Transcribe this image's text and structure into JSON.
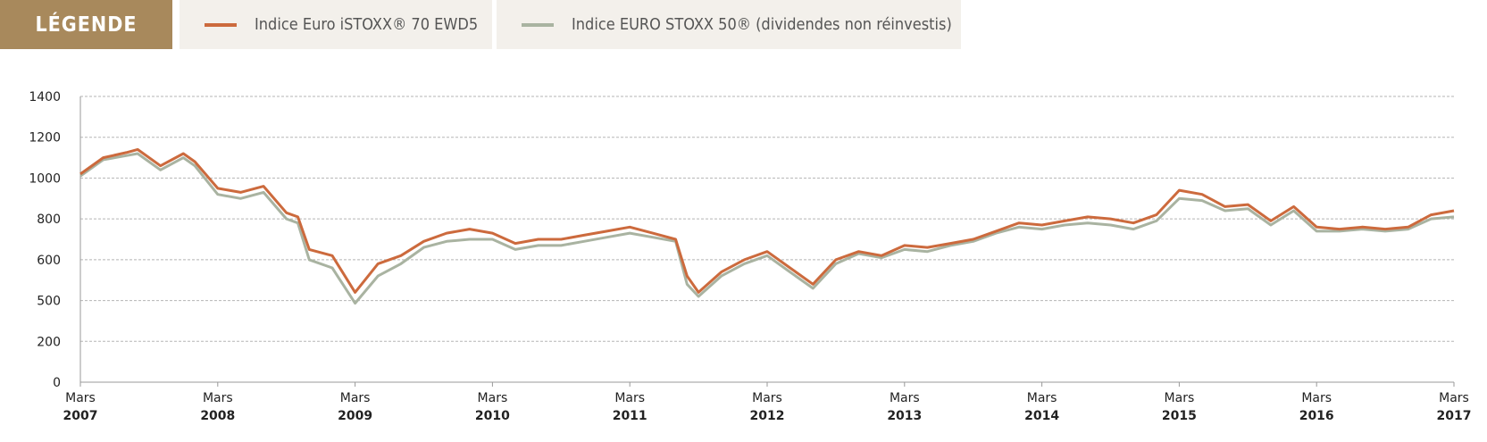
{
  "legend": {
    "title": "LÉGENDE",
    "items": [
      {
        "label": "Indice Euro iSTOXX® 70 EWD5",
        "color": "#cc6a3d"
      },
      {
        "label": "Indice EURO STOXX 50® (dividendes non réinvestis)",
        "color": "#a9b3a1"
      }
    ]
  },
  "chart_data": {
    "type": "line",
    "title": "",
    "xlabel": "",
    "ylabel": "",
    "grid": true,
    "legend_position": "top-left",
    "y_ticks": [
      "0",
      "200",
      "500",
      "600",
      "800",
      "1000",
      "1200",
      "1400"
    ],
    "x_ticks": [
      {
        "month": "Mars",
        "year": "2007"
      },
      {
        "month": "Mars",
        "year": "2008"
      },
      {
        "month": "Mars",
        "year": "2009"
      },
      {
        "month": "Mars",
        "year": "2010"
      },
      {
        "month": "Mars",
        "year": "2011"
      },
      {
        "month": "Mars",
        "year": "2012"
      },
      {
        "month": "Mars",
        "year": "2013"
      },
      {
        "month": "Mars",
        "year": "2014"
      },
      {
        "month": "Mars",
        "year": "2015"
      },
      {
        "month": "Mars",
        "year": "2016"
      },
      {
        "month": "Mars",
        "year": "2017"
      }
    ],
    "x": [
      "2007-03",
      "2007-05",
      "2007-07",
      "2007-08",
      "2007-10",
      "2007-12",
      "2008-01",
      "2008-03",
      "2008-05",
      "2008-07",
      "2008-09",
      "2008-10",
      "2008-11",
      "2009-01",
      "2009-03",
      "2009-05",
      "2009-07",
      "2009-09",
      "2009-11",
      "2010-01",
      "2010-03",
      "2010-05",
      "2010-07",
      "2010-09",
      "2010-11",
      "2011-01",
      "2011-03",
      "2011-05",
      "2011-07",
      "2011-08",
      "2011-09",
      "2011-11",
      "2012-01",
      "2012-03",
      "2012-05",
      "2012-07",
      "2012-09",
      "2012-11",
      "2013-01",
      "2013-03",
      "2013-05",
      "2013-07",
      "2013-09",
      "2013-11",
      "2014-01",
      "2014-03",
      "2014-05",
      "2014-07",
      "2014-09",
      "2014-11",
      "2015-01",
      "2015-03",
      "2015-05",
      "2015-07",
      "2015-09",
      "2015-11",
      "2016-01",
      "2016-03",
      "2016-05",
      "2016-07",
      "2016-09",
      "2016-11",
      "2017-01",
      "2017-03"
    ],
    "series": [
      {
        "name": "Indice Euro iSTOXX® 70 EWD5",
        "color": "#cc6a3d",
        "values": [
          1020,
          1100,
          1125,
          1140,
          1060,
          1120,
          1080,
          950,
          930,
          960,
          830,
          810,
          650,
          620,
          520,
          590,
          620,
          690,
          730,
          750,
          730,
          680,
          700,
          700,
          720,
          740,
          760,
          730,
          700,
          560,
          520,
          570,
          600,
          640,
          580,
          540,
          600,
          640,
          620,
          670,
          660,
          680,
          700,
          740,
          780,
          770,
          790,
          810,
          800,
          780,
          820,
          940,
          920,
          860,
          870,
          790,
          860,
          760,
          750,
          760,
          750,
          760,
          820,
          840
        ],
        "ylim": [
          0,
          1400
        ]
      },
      {
        "name": "Indice EURO STOXX 50® (dividendes non réinvestis)",
        "color": "#a9b3a1",
        "values": [
          1010,
          1090,
          1110,
          1120,
          1040,
          1100,
          1060,
          920,
          900,
          930,
          800,
          780,
          600,
          580,
          480,
          560,
          590,
          660,
          690,
          700,
          700,
          650,
          670,
          670,
          690,
          710,
          730,
          710,
          690,
          540,
          510,
          560,
          590,
          620,
          570,
          530,
          590,
          630,
          610,
          650,
          640,
          670,
          690,
          730,
          760,
          750,
          770,
          780,
          770,
          750,
          790,
          900,
          890,
          840,
          850,
          770,
          840,
          740,
          740,
          750,
          740,
          750,
          800,
          810
        ],
        "ylim": [
          0,
          1400
        ]
      }
    ]
  }
}
